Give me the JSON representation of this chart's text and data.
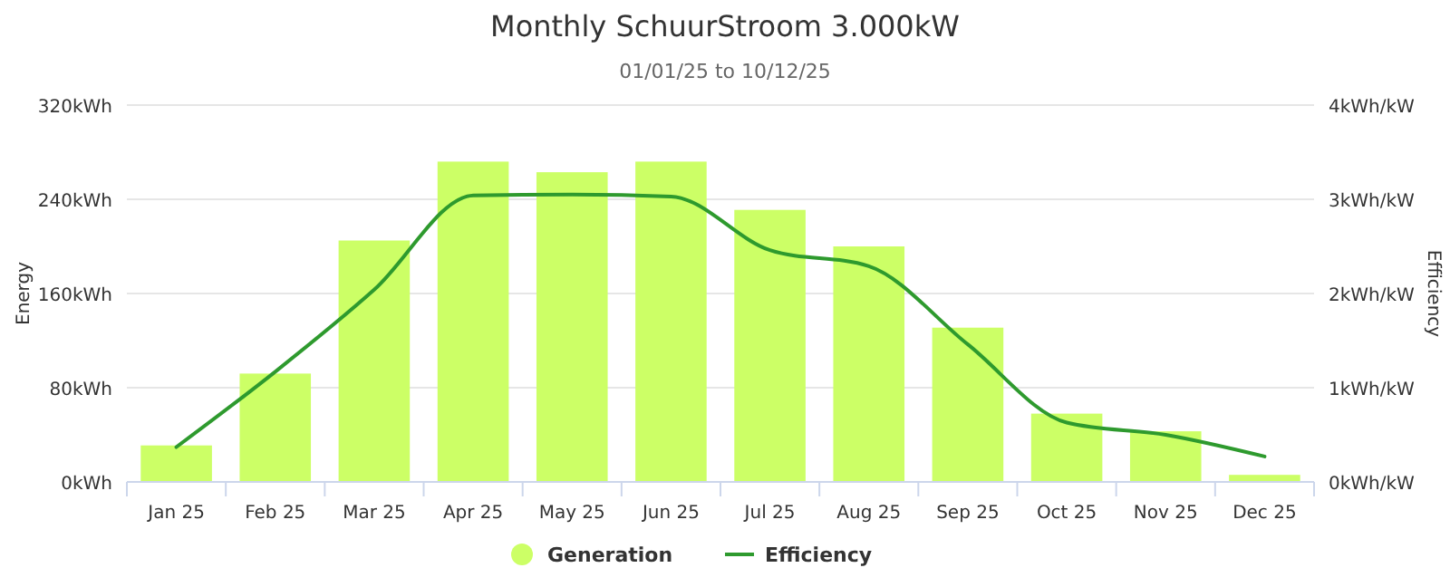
{
  "chart_data": {
    "type": "bar",
    "title": "Monthly SchuurStroom 3.000kW",
    "subtitle": "01/01/25 to 10/12/25",
    "ylabel": "Energy",
    "y2label": "Efficiency",
    "categories": [
      "Jan 25",
      "Feb 25",
      "Mar 25",
      "Apr 25",
      "May 25",
      "Jun 25",
      "Jul 25",
      "Aug 25",
      "Sep 25",
      "Oct 25",
      "Nov 25",
      "Dec 25"
    ],
    "series": [
      {
        "name": "Generation",
        "color": "#ccff66",
        "values": [
          31,
          92,
          205,
          272,
          263,
          272,
          231,
          200,
          131,
          58,
          43,
          6
        ]
      },
      {
        "name": "Efficiency",
        "type": "line",
        "axis": "y2",
        "color": "#2e9a2e",
        "values": [
          0.37,
          1.17,
          2.04,
          3.04,
          3.05,
          3.03,
          2.46,
          2.29,
          1.46,
          0.63,
          0.5,
          0.27
        ]
      }
    ],
    "ylim": [
      0,
      320
    ],
    "yticks": [
      {
        "value": 0,
        "label": "0kWh"
      },
      {
        "value": 80,
        "label": "80kWh"
      },
      {
        "value": 160,
        "label": "160kWh"
      },
      {
        "value": 240,
        "label": "240kWh"
      },
      {
        "value": 320,
        "label": "320kWh"
      }
    ],
    "y2lim": [
      0,
      4
    ],
    "y2ticks": [
      {
        "value": 0,
        "label": "0kWh/kW"
      },
      {
        "value": 1,
        "label": "1kWh/kW"
      },
      {
        "value": 2,
        "label": "2kWh/kW"
      },
      {
        "value": 3,
        "label": "3kWh/kW"
      },
      {
        "value": 4,
        "label": "4kWh/kW"
      }
    ],
    "grid": "y",
    "legend": "bottom",
    "marker": "none",
    "line_style": "solid"
  }
}
